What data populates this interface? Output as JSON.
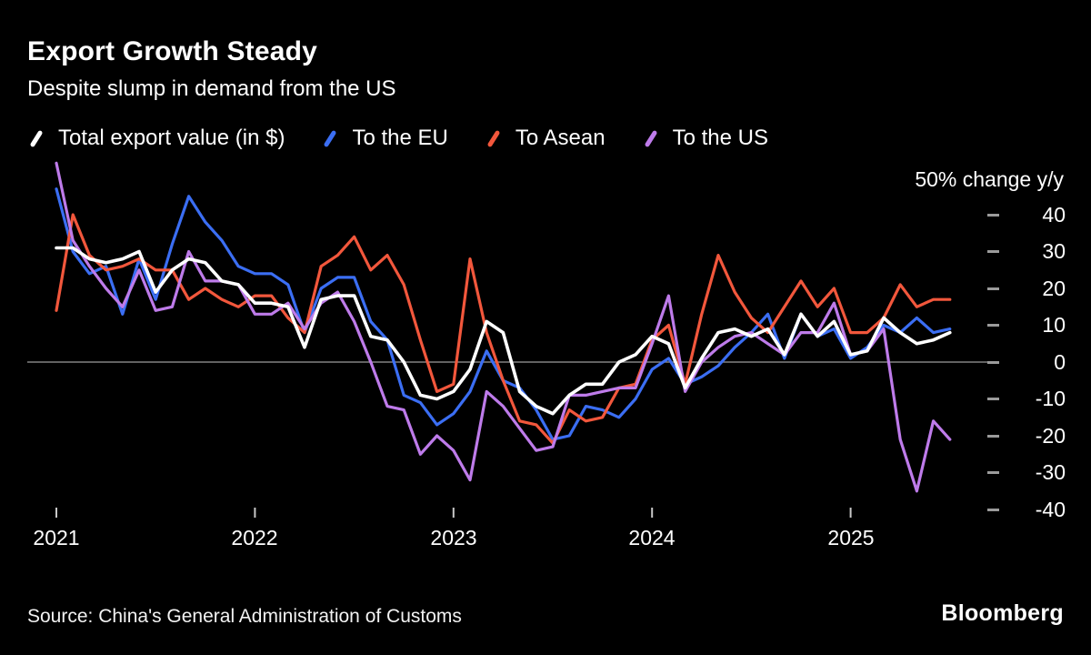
{
  "header": {
    "title": "Export Growth Steady",
    "subtitle": "Despite slump in demand from the US"
  },
  "chart_data": {
    "type": "line",
    "title": "Export Growth Steady",
    "subtitle": "Despite slump in demand from the US",
    "unit_label": "50% change y/y",
    "legend_position": "top",
    "grid": false,
    "ylim": [
      -45,
      50
    ],
    "y_ticks": [
      40,
      30,
      20,
      10,
      0,
      -10,
      -20,
      -30,
      -40
    ],
    "x_tick_labels": [
      "2021",
      "2022",
      "2023",
      "2024",
      "2025"
    ],
    "x": [
      "2021-01",
      "2021-02",
      "2021-03",
      "2021-04",
      "2021-05",
      "2021-06",
      "2021-07",
      "2021-08",
      "2021-09",
      "2021-10",
      "2021-11",
      "2021-12",
      "2022-01",
      "2022-02",
      "2022-03",
      "2022-04",
      "2022-05",
      "2022-06",
      "2022-07",
      "2022-08",
      "2022-09",
      "2022-10",
      "2022-11",
      "2022-12",
      "2023-01",
      "2023-02",
      "2023-03",
      "2023-04",
      "2023-05",
      "2023-06",
      "2023-07",
      "2023-08",
      "2023-09",
      "2023-10",
      "2023-11",
      "2023-12",
      "2024-01",
      "2024-02",
      "2024-03",
      "2024-04",
      "2024-05",
      "2024-06",
      "2024-07",
      "2024-08",
      "2024-09",
      "2024-10",
      "2024-11",
      "2024-12",
      "2025-01",
      "2025-02",
      "2025-03",
      "2025-04",
      "2025-05",
      "2025-06",
      "2025-07"
    ],
    "series": [
      {
        "name": "Total export value (in $)",
        "color": "#FFFFFF",
        "values": [
          31,
          31,
          28,
          27,
          28,
          30,
          19,
          25,
          28,
          27,
          22,
          21,
          16,
          16,
          15,
          4,
          17,
          18,
          18,
          7,
          6,
          0,
          -9,
          -10,
          -8,
          -2,
          11,
          8,
          -8,
          -12,
          -14,
          -9,
          -6,
          -6,
          0,
          2,
          7,
          5,
          -7,
          1,
          8,
          9,
          7,
          9,
          2,
          13,
          7,
          11,
          2,
          3,
          12,
          8,
          5,
          6,
          8
        ]
      },
      {
        "name": "To the EU",
        "color": "#3B6EF3",
        "values": [
          47,
          30,
          24,
          26,
          13,
          28,
          17,
          32,
          45,
          38,
          33,
          26,
          24,
          24,
          21,
          8,
          20,
          23,
          23,
          11,
          6,
          -9,
          -11,
          -17,
          -14,
          -8,
          3,
          -5,
          -7,
          -13,
          -21,
          -20,
          -12,
          -13,
          -15,
          -10,
          -2,
          1,
          -6,
          -4,
          -1,
          4,
          8,
          13,
          1,
          13,
          7,
          9,
          1,
          4,
          10,
          8,
          12,
          8,
          9
        ]
      },
      {
        "name": "To Asean",
        "color": "#F2573C",
        "values": [
          14,
          40,
          29,
          25,
          26,
          28,
          25,
          25,
          17,
          20,
          17,
          15,
          18,
          18,
          12,
          8,
          26,
          29,
          34,
          25,
          29,
          21,
          6,
          -8,
          -6,
          28,
          8,
          -5,
          -16,
          -17,
          -22,
          -13,
          -16,
          -15,
          -7,
          -6,
          6,
          10,
          -6,
          13,
          29,
          19,
          12,
          8,
          15,
          22,
          15,
          20,
          8,
          8,
          12,
          21,
          15,
          17,
          17
        ]
      },
      {
        "name": "To the US",
        "color": "#BE7BEA",
        "values": [
          54,
          33,
          26,
          20,
          15,
          25,
          14,
          15,
          30,
          22,
          22,
          21,
          13,
          13,
          16,
          9,
          16,
          19,
          11,
          0,
          -12,
          -13,
          -25,
          -20,
          -24,
          -32,
          -8,
          -12,
          -18,
          -24,
          -23,
          -9,
          -9,
          -8,
          -7,
          -7,
          5,
          18,
          -8,
          0,
          4,
          7,
          8,
          5,
          2,
          8,
          8,
          16,
          2,
          3,
          9,
          -21,
          -35,
          -16,
          -21
        ]
      }
    ],
    "colors": {
      "background": "#000000",
      "zero_line": "#9B9B9B",
      "axis_tick": "#C8C8C8",
      "text": "#FFFFFF"
    }
  },
  "footer": {
    "source": "Source: China's General Administration of Customs",
    "brand": "Bloomberg"
  }
}
